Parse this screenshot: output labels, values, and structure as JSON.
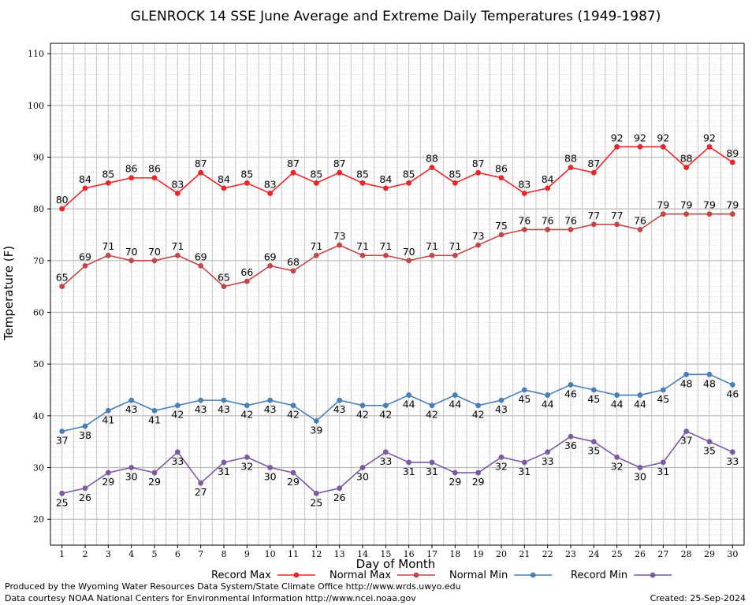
{
  "chart_data": {
    "type": "line",
    "title": "GLENROCK 14 SSE June Average and Extreme Daily Temperatures (1949-1987)",
    "xlabel": "Day of Month",
    "ylabel": "Temperature (F)",
    "x": [
      1,
      2,
      3,
      4,
      5,
      6,
      7,
      8,
      9,
      10,
      11,
      12,
      13,
      14,
      15,
      16,
      17,
      18,
      19,
      20,
      21,
      22,
      23,
      24,
      25,
      26,
      27,
      28,
      29,
      30
    ],
    "xlim": [
      0.5,
      30.5
    ],
    "ylim": [
      15,
      112
    ],
    "yticks": [
      20,
      30,
      40,
      50,
      60,
      70,
      80,
      90,
      100,
      110
    ],
    "grid": true,
    "legend_position": "bottom",
    "series": [
      {
        "name": "Record Max",
        "color": "#e8262a",
        "values": [
          80,
          84,
          85,
          86,
          86,
          83,
          87,
          84,
          85,
          83,
          87,
          85,
          87,
          85,
          84,
          85,
          88,
          85,
          87,
          86,
          83,
          84,
          88,
          87,
          92,
          92,
          92,
          88,
          92,
          89
        ]
      },
      {
        "name": "Normal Max",
        "color": "#c0484a",
        "values": [
          65,
          69,
          71,
          70,
          70,
          71,
          69,
          65,
          66,
          69,
          68,
          71,
          73,
          71,
          71,
          70,
          71,
          71,
          73,
          75,
          76,
          76,
          76,
          77,
          77,
          76,
          79,
          79,
          79,
          79
        ]
      },
      {
        "name": "Normal Min",
        "color": "#4a7fb5",
        "values": [
          37,
          38,
          41,
          43,
          41,
          42,
          43,
          43,
          42,
          43,
          42,
          39,
          43,
          42,
          42,
          44,
          42,
          44,
          42,
          43,
          45,
          44,
          46,
          45,
          44,
          44,
          45,
          48,
          48,
          46
        ]
      },
      {
        "name": "Record Min",
        "color": "#7b5aa0",
        "values": [
          25,
          26,
          29,
          30,
          29,
          33,
          27,
          31,
          32,
          30,
          29,
          25,
          26,
          30,
          33,
          31,
          31,
          29,
          29,
          32,
          31,
          33,
          36,
          35,
          32,
          30,
          31,
          37,
          35,
          33
        ]
      }
    ]
  },
  "footer": {
    "line1": "Produced by the Wyoming Water Resources Data System/State Climate Office http://www.wrds.uwyo.edu",
    "line2": "Data courtesy NOAA National Centers for Environmental Information http://www.ncei.noaa.gov",
    "created": "Created: 25-Sep-2024"
  }
}
